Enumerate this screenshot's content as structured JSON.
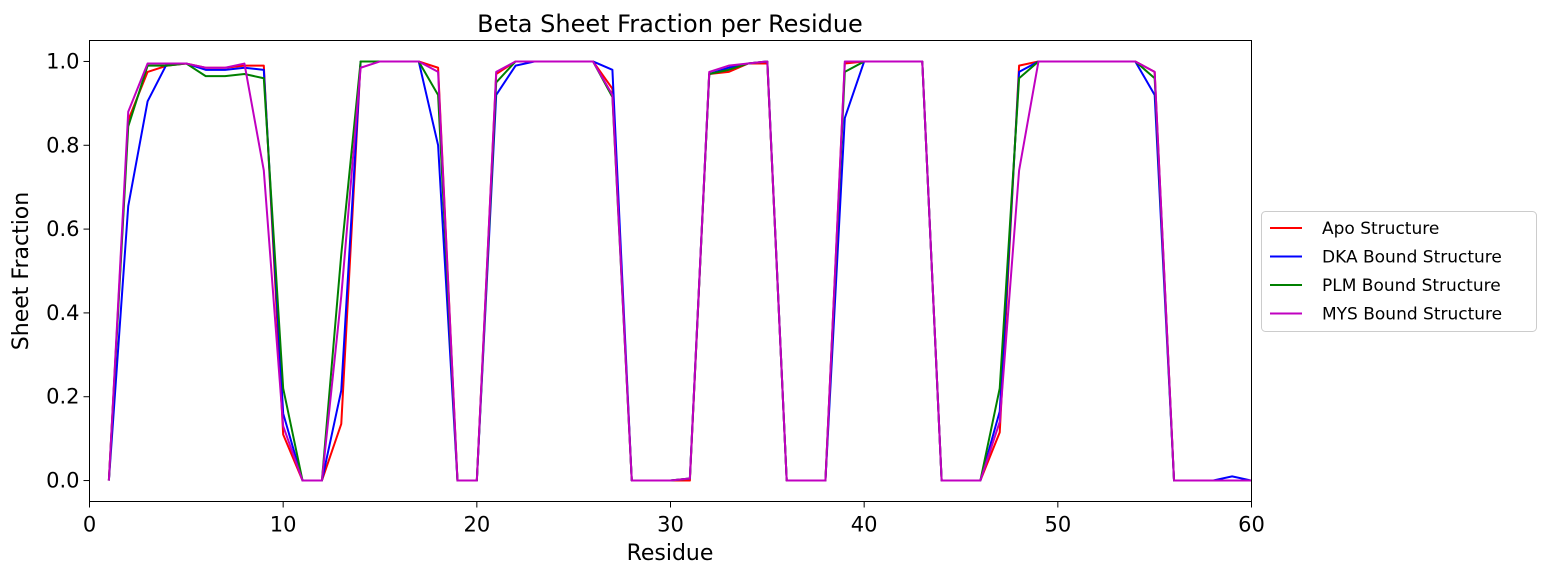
{
  "chart_data": {
    "type": "line",
    "title": "Beta Sheet Fraction per Residue",
    "xlabel": "Residue",
    "ylabel": "Sheet Fraction",
    "xlim": [
      0,
      60
    ],
    "ylim": [
      -0.05,
      1.05
    ],
    "xticks": [
      0,
      10,
      20,
      30,
      40,
      50,
      60
    ],
    "yticks": [
      0.0,
      0.2,
      0.4,
      0.6,
      0.8,
      1.0
    ],
    "xtick_labels": [
      "0",
      "10",
      "20",
      "30",
      "40",
      "50",
      "60"
    ],
    "ytick_labels": [
      "0.0",
      "0.2",
      "0.4",
      "0.6",
      "0.8",
      "1.0"
    ],
    "grid": false,
    "legend_position": "center-right-outside",
    "x": [
      1,
      2,
      3,
      4,
      5,
      6,
      7,
      8,
      9,
      10,
      11,
      12,
      13,
      14,
      15,
      16,
      17,
      18,
      19,
      20,
      21,
      22,
      23,
      24,
      25,
      26,
      27,
      28,
      29,
      30,
      31,
      32,
      33,
      34,
      35,
      36,
      37,
      38,
      39,
      40,
      41,
      42,
      43,
      44,
      45,
      46,
      47,
      48,
      49,
      50,
      51,
      52,
      53,
      54,
      55,
      56,
      57,
      58,
      59,
      60
    ],
    "series": [
      {
        "name": "Apo Structure",
        "color": "#ff0000",
        "values": [
          0.0,
          0.86,
          0.975,
          0.99,
          0.995,
          0.985,
          0.985,
          0.99,
          0.99,
          0.11,
          0.0,
          0.0,
          0.135,
          1.0,
          1.0,
          1.0,
          1.0,
          0.985,
          0.0,
          0.0,
          0.97,
          1.0,
          1.0,
          1.0,
          1.0,
          1.0,
          0.935,
          0.0,
          0.0,
          0.0,
          0.0,
          0.97,
          0.975,
          0.995,
          0.995,
          0.0,
          0.0,
          0.0,
          0.995,
          1.0,
          1.0,
          1.0,
          1.0,
          0.0,
          0.0,
          0.0,
          0.115,
          0.99,
          1.0,
          1.0,
          1.0,
          1.0,
          1.0,
          1.0,
          0.975,
          0.0,
          0.0,
          0.0,
          0.0,
          0.0
        ]
      },
      {
        "name": "DKA Bound Structure",
        "color": "#0000ff",
        "values": [
          0.0,
          0.655,
          0.905,
          0.995,
          0.995,
          0.98,
          0.98,
          0.985,
          0.98,
          0.16,
          0.0,
          0.0,
          0.215,
          1.0,
          1.0,
          1.0,
          1.0,
          0.8,
          0.0,
          0.0,
          0.92,
          0.99,
          1.0,
          1.0,
          1.0,
          1.0,
          0.98,
          0.0,
          0.0,
          0.0,
          0.005,
          0.97,
          0.985,
          0.995,
          1.0,
          0.0,
          0.0,
          0.0,
          0.865,
          1.0,
          1.0,
          1.0,
          1.0,
          0.0,
          0.0,
          0.0,
          0.165,
          0.975,
          1.0,
          1.0,
          1.0,
          1.0,
          1.0,
          1.0,
          0.92,
          0.0,
          0.0,
          0.0,
          0.01,
          0.0
        ]
      },
      {
        "name": "PLM Bound Structure",
        "color": "#008000",
        "values": [
          0.0,
          0.845,
          0.99,
          0.99,
          0.995,
          0.965,
          0.965,
          0.97,
          0.96,
          0.22,
          0.0,
          0.0,
          0.54,
          1.0,
          1.0,
          1.0,
          1.0,
          0.92,
          0.0,
          0.0,
          0.95,
          1.0,
          1.0,
          1.0,
          1.0,
          1.0,
          0.915,
          0.0,
          0.0,
          0.0,
          0.005,
          0.97,
          0.98,
          0.995,
          1.0,
          0.0,
          0.0,
          0.0,
          0.975,
          1.0,
          1.0,
          1.0,
          1.0,
          0.0,
          0.0,
          0.0,
          0.22,
          0.96,
          1.0,
          1.0,
          1.0,
          1.0,
          1.0,
          1.0,
          0.96,
          0.0,
          0.0,
          0.0,
          0.0,
          0.0
        ]
      },
      {
        "name": "MYS Bound Structure",
        "color": "#c000c0",
        "values": [
          0.0,
          0.88,
          0.995,
          0.995,
          0.995,
          0.985,
          0.985,
          0.995,
          0.74,
          0.13,
          0.0,
          0.0,
          0.44,
          0.985,
          1.0,
          1.0,
          1.0,
          0.975,
          0.0,
          0.0,
          0.975,
          1.0,
          1.0,
          1.0,
          1.0,
          1.0,
          0.92,
          0.0,
          0.0,
          0.0,
          0.005,
          0.975,
          0.99,
          0.995,
          1.0,
          0.0,
          0.0,
          0.0,
          1.0,
          1.0,
          1.0,
          1.0,
          1.0,
          0.0,
          0.0,
          0.0,
          0.14,
          0.74,
          1.0,
          1.0,
          1.0,
          1.0,
          1.0,
          1.0,
          0.975,
          0.0,
          0.0,
          0.0,
          0.0,
          0.0
        ]
      }
    ]
  }
}
